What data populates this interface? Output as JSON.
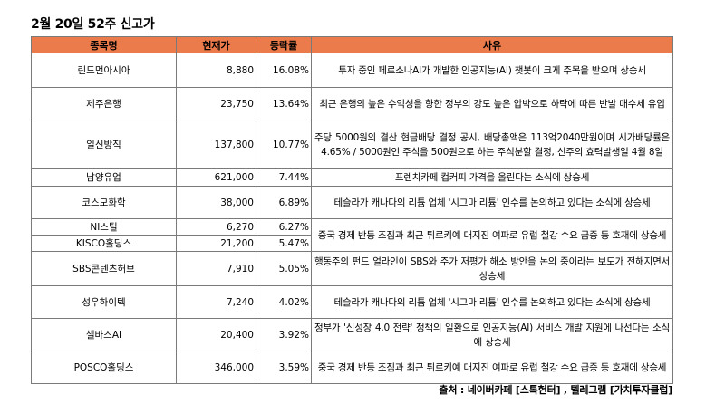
{
  "title": "2월 20일 52주 신고가",
  "headers": {
    "name": "종목명",
    "price": "현재가",
    "change": "등락률",
    "reason": "사유"
  },
  "rows": [
    {
      "name": "린드먼아시아",
      "price": "8,880",
      "change": "16.08%",
      "reason": "투자 중인 페르소나AI가 개발한 인공지능(AI) 챗봇이 크게 주목을 받으며 상승세"
    },
    {
      "name": "제주은행",
      "price": "23,750",
      "change": "13.64%",
      "reason": "최근 은행의 높은 수익성을 향한 정부의 강도 높은 압박으로 하락에 따른 반발 매수세 유입"
    },
    {
      "name": "일신방직",
      "price": "137,800",
      "change": "10.77%",
      "reason": "주당 5000원의 결산 현금배당 결정 공시, 배당총액은 113억2040만원이며 시가배당률은 4.65% / 5000원인 주식을 500원으로 하는 주식분할 결정, 신주의 효력발생일 4월 8일"
    },
    {
      "name": "남양유업",
      "price": "621,000",
      "change": "7.44%",
      "reason": "프렌치카페 컵커피 가격을 올린다는 소식에 상승세"
    },
    {
      "name": "코스모화학",
      "price": "38,000",
      "change": "6.89%",
      "reason": "테슬라가 캐나다의 리튬 업체 '시그마 리튬' 인수를 논의하고 있다는 소식에 상승세"
    },
    {
      "name": "NI스틸",
      "price": "6,270",
      "change": "6.27%",
      "reason": "중국 경제 반등 조짐과 최근 튀르키예 대지진 여파로 유럽 철강 수요 급증 등 호재에 상승세"
    },
    {
      "name": "KISCO홀딩스",
      "price": "21,200",
      "change": "5.47%"
    },
    {
      "name": "SBS콘텐츠허브",
      "price": "7,910",
      "change": "5.05%",
      "reason": "행동주의 펀드 얼라인이 SBS와 주가 저평가 해소 방안을 논의 중이라는 보도가 전해지면서 상승세"
    },
    {
      "name": "성우하이텍",
      "price": "7,240",
      "change": "4.02%",
      "reason": "테슬라가 캐나다의 리튬 업체 '시그마 리튬' 인수를 논의하고 있다는 소식에 상승세"
    },
    {
      "name": "셀바스AI",
      "price": "20,400",
      "change": "3.92%",
      "reason": "정부가 '신성장 4.0 전략' 정책의 일환으로 인공지능(AI) 서비스 개발 지원에 나선다는 소식에 상승세"
    },
    {
      "name": "POSCO홀딩스",
      "price": "346,000",
      "change": "3.59%",
      "reason": "중국 경제 반등 조짐과 최근 튀르키예 대지진 여파로 유럽 철강 수요 급증 등 호재에 상승세"
    }
  ],
  "source": "출처 : 네이버카페 [스톡헌터] , 텔레그램 [가치투자클럽]"
}
